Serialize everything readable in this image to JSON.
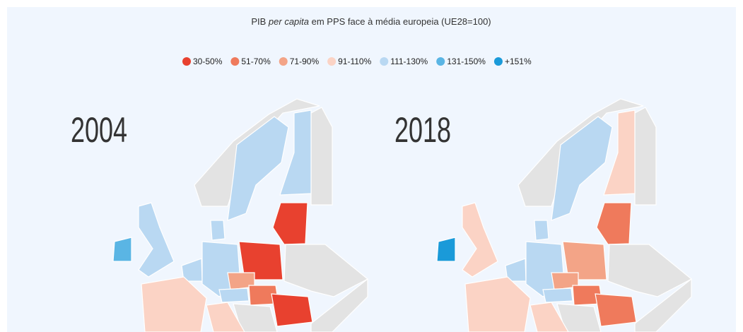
{
  "header": {
    "title": [
      "PIB ",
      "per capita",
      " em PPS face à média europeia (UE28=100)"
    ]
  },
  "legend": {
    "items": [
      {
        "label": "30-50%",
        "color": "#e8412f"
      },
      {
        "label": "51-70%",
        "color": "#ef7a5c"
      },
      {
        "label": "71-90%",
        "color": "#f3a487"
      },
      {
        "label": "91-110%",
        "color": "#fbd3c5"
      },
      {
        "label": "111-130%",
        "color": "#b9d8f2"
      },
      {
        "label": "131-150%",
        "color": "#5ab5e4"
      },
      {
        "label": "+151%",
        "color": "#1a9ad9"
      }
    ]
  },
  "panels": [
    {
      "year": "2004"
    },
    {
      "year": "2018"
    }
  ]
}
